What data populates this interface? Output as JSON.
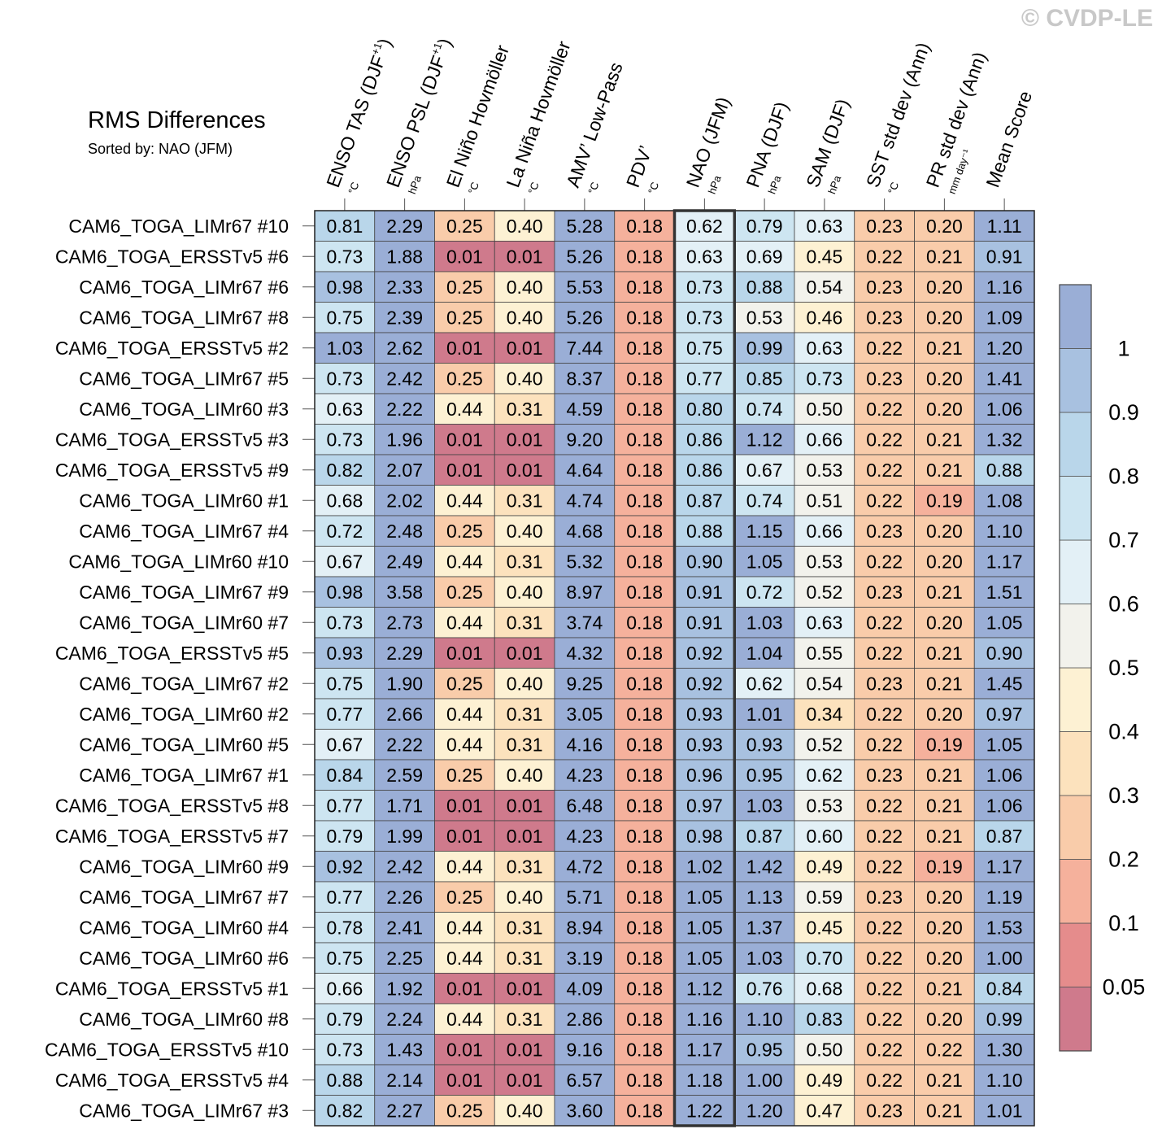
{
  "title": "RMS Differences",
  "subtitle": "Sorted by: NAO (JFM)",
  "copyright": "© CVDP-LE",
  "colors": {
    "levels": [
      "#cf7a8c",
      "#e58c8c",
      "#f5b19c",
      "#f9ccaa",
      "#fce2bd",
      "#fdf1d3",
      "#f2f2ec",
      "#e3f0f6",
      "#cde5f1",
      "#b9d6ea",
      "#a8c1e0",
      "#9aaed6"
    ],
    "highlight_border": "#333333",
    "grid": "#444444"
  },
  "colorbar": {
    "labels": [
      "0.05",
      "0.1",
      "0.2",
      "0.3",
      "0.4",
      "0.5",
      "0.6",
      "0.7",
      "0.8",
      "0.9",
      "1"
    ]
  },
  "chart_data": {
    "type": "heatmap",
    "title": "RMS Differences",
    "subtitle": "Sorted by: NAO (JFM)",
    "sorted_by": "NAO (JFM)",
    "thresholds": [
      0.05,
      0.1,
      0.2,
      0.3,
      0.4,
      0.5,
      0.6,
      0.7,
      0.8,
      0.9,
      1
    ],
    "columns": [
      {
        "name": "ENSO TAS (DJF",
        "sup": "+1",
        "after": ")",
        "unit": "°C"
      },
      {
        "name": "ENSO PSL (DJF",
        "sup": "+1",
        "after": ")",
        "unit": "hPa"
      },
      {
        "name": "El Niño Hovmöller",
        "sup": "",
        "after": "",
        "unit": "°C"
      },
      {
        "name": "La Niña Hovmöller",
        "sup": "",
        "after": "",
        "unit": "°C"
      },
      {
        "name": "AMV’ Low-Pass",
        "sup": "",
        "after": "",
        "unit": "°C"
      },
      {
        "name": "PDV’",
        "sup": "",
        "after": "",
        "unit": "°C"
      },
      {
        "name": "NAO (JFM)",
        "sup": "",
        "after": "",
        "unit": "hPa"
      },
      {
        "name": "PNA (DJF)",
        "sup": "",
        "after": "",
        "unit": "hPa"
      },
      {
        "name": "SAM (DJF)",
        "sup": "",
        "after": "",
        "unit": "hPa"
      },
      {
        "name": "SST std dev (Ann)",
        "sup": "",
        "after": "",
        "unit": "°C"
      },
      {
        "name": "PR std dev (Ann)",
        "sup": "",
        "after": "",
        "unit": "mm day⁻¹"
      },
      {
        "name": "Mean Score",
        "sup": "",
        "after": "",
        "unit": ""
      }
    ],
    "highlight_column": 6,
    "rows": [
      {
        "name": "CAM6_TOGA_LIMr67 #10",
        "values": [
          "0.81",
          "2.29",
          "0.25",
          "0.40",
          "5.28",
          "0.18",
          "0.62",
          "0.79",
          "0.63",
          "0.23",
          "0.20",
          "1.11"
        ]
      },
      {
        "name": "CAM6_TOGA_ERSSTv5 #6",
        "values": [
          "0.73",
          "1.88",
          "0.01",
          "0.01",
          "5.26",
          "0.18",
          "0.63",
          "0.69",
          "0.45",
          "0.22",
          "0.21",
          "0.91"
        ]
      },
      {
        "name": "CAM6_TOGA_LIMr67 #6",
        "values": [
          "0.98",
          "2.33",
          "0.25",
          "0.40",
          "5.53",
          "0.18",
          "0.73",
          "0.88",
          "0.54",
          "0.23",
          "0.20",
          "1.16"
        ]
      },
      {
        "name": "CAM6_TOGA_LIMr67 #8",
        "values": [
          "0.75",
          "2.39",
          "0.25",
          "0.40",
          "5.26",
          "0.18",
          "0.73",
          "0.53",
          "0.46",
          "0.23",
          "0.20",
          "1.09"
        ]
      },
      {
        "name": "CAM6_TOGA_ERSSTv5 #2",
        "values": [
          "1.03",
          "2.62",
          "0.01",
          "0.01",
          "7.44",
          "0.18",
          "0.75",
          "0.99",
          "0.63",
          "0.22",
          "0.21",
          "1.20"
        ]
      },
      {
        "name": "CAM6_TOGA_LIMr67 #5",
        "values": [
          "0.73",
          "2.42",
          "0.25",
          "0.40",
          "8.37",
          "0.18",
          "0.77",
          "0.85",
          "0.73",
          "0.23",
          "0.20",
          "1.41"
        ]
      },
      {
        "name": "CAM6_TOGA_LIMr60 #3",
        "values": [
          "0.63",
          "2.22",
          "0.44",
          "0.31",
          "4.59",
          "0.18",
          "0.80",
          "0.74",
          "0.50",
          "0.22",
          "0.20",
          "1.06"
        ]
      },
      {
        "name": "CAM6_TOGA_ERSSTv5 #3",
        "values": [
          "0.73",
          "1.96",
          "0.01",
          "0.01",
          "9.20",
          "0.18",
          "0.86",
          "1.12",
          "0.66",
          "0.22",
          "0.21",
          "1.32"
        ]
      },
      {
        "name": "CAM6_TOGA_ERSSTv5 #9",
        "values": [
          "0.82",
          "2.07",
          "0.01",
          "0.01",
          "4.64",
          "0.18",
          "0.86",
          "0.67",
          "0.53",
          "0.22",
          "0.21",
          "0.88"
        ]
      },
      {
        "name": "CAM6_TOGA_LIMr60 #1",
        "values": [
          "0.68",
          "2.02",
          "0.44",
          "0.31",
          "4.74",
          "0.18",
          "0.87",
          "0.74",
          "0.51",
          "0.22",
          "0.19",
          "1.08"
        ]
      },
      {
        "name": "CAM6_TOGA_LIMr67 #4",
        "values": [
          "0.72",
          "2.48",
          "0.25",
          "0.40",
          "4.68",
          "0.18",
          "0.88",
          "1.15",
          "0.66",
          "0.23",
          "0.20",
          "1.10"
        ]
      },
      {
        "name": "CAM6_TOGA_LIMr60 #10",
        "values": [
          "0.67",
          "2.49",
          "0.44",
          "0.31",
          "5.32",
          "0.18",
          "0.90",
          "1.05",
          "0.53",
          "0.22",
          "0.20",
          "1.17"
        ]
      },
      {
        "name": "CAM6_TOGA_LIMr67 #9",
        "values": [
          "0.98",
          "3.58",
          "0.25",
          "0.40",
          "8.97",
          "0.18",
          "0.91",
          "0.72",
          "0.52",
          "0.23",
          "0.21",
          "1.51"
        ]
      },
      {
        "name": "CAM6_TOGA_LIMr60 #7",
        "values": [
          "0.73",
          "2.73",
          "0.44",
          "0.31",
          "3.74",
          "0.18",
          "0.91",
          "1.03",
          "0.63",
          "0.22",
          "0.20",
          "1.05"
        ]
      },
      {
        "name": "CAM6_TOGA_ERSSTv5 #5",
        "values": [
          "0.93",
          "2.29",
          "0.01",
          "0.01",
          "4.32",
          "0.18",
          "0.92",
          "1.04",
          "0.55",
          "0.22",
          "0.21",
          "0.90"
        ]
      },
      {
        "name": "CAM6_TOGA_LIMr67 #2",
        "values": [
          "0.75",
          "1.90",
          "0.25",
          "0.40",
          "9.25",
          "0.18",
          "0.92",
          "0.62",
          "0.54",
          "0.23",
          "0.21",
          "1.45"
        ]
      },
      {
        "name": "CAM6_TOGA_LIMr60 #2",
        "values": [
          "0.77",
          "2.66",
          "0.44",
          "0.31",
          "3.05",
          "0.18",
          "0.93",
          "1.01",
          "0.34",
          "0.22",
          "0.20",
          "0.97"
        ]
      },
      {
        "name": "CAM6_TOGA_LIMr60 #5",
        "values": [
          "0.67",
          "2.22",
          "0.44",
          "0.31",
          "4.16",
          "0.18",
          "0.93",
          "0.93",
          "0.52",
          "0.22",
          "0.19",
          "1.05"
        ]
      },
      {
        "name": "CAM6_TOGA_LIMr67 #1",
        "values": [
          "0.84",
          "2.59",
          "0.25",
          "0.40",
          "4.23",
          "0.18",
          "0.96",
          "0.95",
          "0.62",
          "0.23",
          "0.21",
          "1.06"
        ]
      },
      {
        "name": "CAM6_TOGA_ERSSTv5 #8",
        "values": [
          "0.77",
          "1.71",
          "0.01",
          "0.01",
          "6.48",
          "0.18",
          "0.97",
          "1.03",
          "0.53",
          "0.22",
          "0.21",
          "1.06"
        ]
      },
      {
        "name": "CAM6_TOGA_ERSSTv5 #7",
        "values": [
          "0.79",
          "1.99",
          "0.01",
          "0.01",
          "4.23",
          "0.18",
          "0.98",
          "0.87",
          "0.60",
          "0.22",
          "0.21",
          "0.87"
        ]
      },
      {
        "name": "CAM6_TOGA_LIMr60 #9",
        "values": [
          "0.92",
          "2.42",
          "0.44",
          "0.31",
          "4.72",
          "0.18",
          "1.02",
          "1.42",
          "0.49",
          "0.22",
          "0.19",
          "1.17"
        ]
      },
      {
        "name": "CAM6_TOGA_LIMr67 #7",
        "values": [
          "0.77",
          "2.26",
          "0.25",
          "0.40",
          "5.71",
          "0.18",
          "1.05",
          "1.13",
          "0.59",
          "0.23",
          "0.20",
          "1.19"
        ]
      },
      {
        "name": "CAM6_TOGA_LIMr60 #4",
        "values": [
          "0.78",
          "2.41",
          "0.44",
          "0.31",
          "8.94",
          "0.18",
          "1.05",
          "1.37",
          "0.45",
          "0.22",
          "0.20",
          "1.53"
        ]
      },
      {
        "name": "CAM6_TOGA_LIMr60 #6",
        "values": [
          "0.75",
          "2.25",
          "0.44",
          "0.31",
          "3.19",
          "0.18",
          "1.05",
          "1.03",
          "0.70",
          "0.22",
          "0.20",
          "1.00"
        ]
      },
      {
        "name": "CAM6_TOGA_ERSSTv5 #1",
        "values": [
          "0.66",
          "1.92",
          "0.01",
          "0.01",
          "4.09",
          "0.18",
          "1.12",
          "0.76",
          "0.68",
          "0.22",
          "0.21",
          "0.84"
        ]
      },
      {
        "name": "CAM6_TOGA_LIMr60 #8",
        "values": [
          "0.79",
          "2.24",
          "0.44",
          "0.31",
          "2.86",
          "0.18",
          "1.16",
          "1.10",
          "0.83",
          "0.22",
          "0.20",
          "0.99"
        ]
      },
      {
        "name": "CAM6_TOGA_ERSSTv5 #10",
        "values": [
          "0.73",
          "1.43",
          "0.01",
          "0.01",
          "9.16",
          "0.18",
          "1.17",
          "0.95",
          "0.50",
          "0.22",
          "0.22",
          "1.30"
        ]
      },
      {
        "name": "CAM6_TOGA_ERSSTv5 #4",
        "values": [
          "0.88",
          "2.14",
          "0.01",
          "0.01",
          "6.57",
          "0.18",
          "1.18",
          "1.00",
          "0.49",
          "0.22",
          "0.21",
          "1.10"
        ]
      },
      {
        "name": "CAM6_TOGA_LIMr67 #3",
        "values": [
          "0.82",
          "2.27",
          "0.25",
          "0.40",
          "3.60",
          "0.18",
          "1.22",
          "1.20",
          "0.47",
          "0.23",
          "0.21",
          "1.01"
        ]
      }
    ]
  }
}
